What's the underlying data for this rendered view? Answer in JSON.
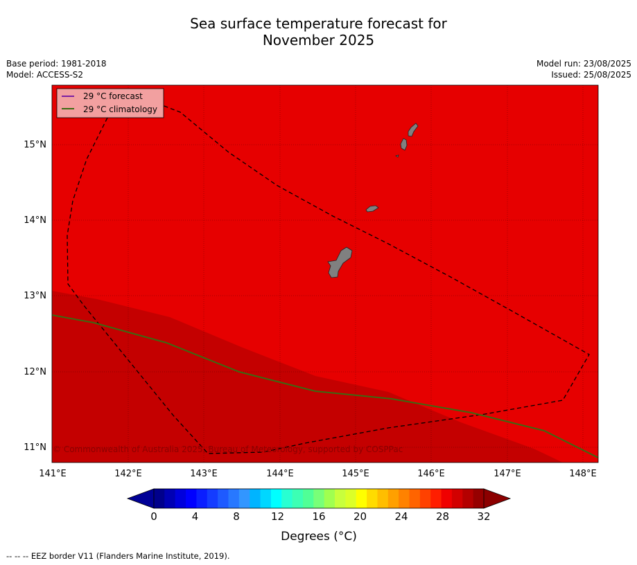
{
  "title_line1": "Sea surface temperature forecast for",
  "title_line2": "November 2025",
  "meta_left": [
    "Base period: 1981-2018",
    "Model: ACCESS-S2"
  ],
  "meta_right": [
    "Model run: 23/08/2025",
    "Issued: 25/08/2025"
  ],
  "map": {
    "lon_range": [
      141.0,
      148.2
    ],
    "lat_range": [
      10.8,
      15.8
    ],
    "lon_ticks": [
      "141°E",
      "142°E",
      "143°E",
      "144°E",
      "145°E",
      "146°E",
      "147°E",
      "148°E"
    ],
    "lat_ticks": [
      "15°N",
      "14°N",
      "13°N",
      "12°N",
      "11°N"
    ],
    "colors": {
      "warm_field": "#e60000",
      "hot_field": "#c40000",
      "land": "#808080",
      "forecast_line": "#7b1fa2",
      "climatology_line": "#3a6b12"
    },
    "legend": [
      {
        "label": "29 °C  forecast",
        "color": "#7b1fa2"
      },
      {
        "label": "29 °C  climatology",
        "color": "#3a6b12"
      }
    ],
    "copyright": "© Commonwealth of Australia 2025, Bureau of Meteorology, supported by COSPPac"
  },
  "colorbar": {
    "ticks": [
      "0",
      "4",
      "8",
      "12",
      "16",
      "20",
      "24",
      "28",
      "32"
    ],
    "colors": [
      "#00008c",
      "#0000b4",
      "#0000dc",
      "#0000ff",
      "#0a1eff",
      "#143cff",
      "#1e5aff",
      "#2878ff",
      "#3296ff",
      "#00b4ff",
      "#00d7ff",
      "#00ffff",
      "#28ffd2",
      "#3cffb4",
      "#50ff96",
      "#78ff78",
      "#a0ff50",
      "#c8ff3c",
      "#dcff28",
      "#ffff00",
      "#ffdc00",
      "#ffbe00",
      "#ffa000",
      "#ff8200",
      "#ff6400",
      "#ff4100",
      "#ff1e00",
      "#f00000",
      "#d20000",
      "#b40000",
      "#960000"
    ],
    "under_color": "#000096",
    "over_color": "#8c0000",
    "label": "Degrees ($^\\circ$C)",
    "label_display": "Degrees (°C)"
  },
  "footer": "--  --  -- EEZ border V11 (Flanders Marine Institute, 2019)."
}
